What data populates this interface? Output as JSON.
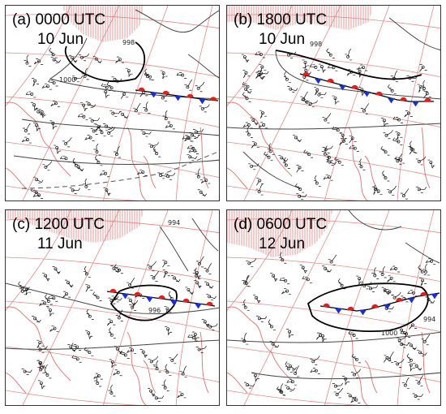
{
  "panels": [
    {
      "id": "a",
      "prefix": "(a)",
      "time": "0000 UTC",
      "date": "10 Jun",
      "isobar_labels": [
        "998",
        "1000"
      ]
    },
    {
      "id": "b",
      "prefix": "(b)",
      "time": "1800 UTC",
      "date": "10 Jun",
      "isobar_labels": [
        "998"
      ]
    },
    {
      "id": "c",
      "prefix": "(c)",
      "time": "1200 UTC",
      "date": "11 Jun",
      "isobar_labels": [
        "996",
        "994"
      ]
    },
    {
      "id": "d",
      "prefix": "(d)",
      "time": "0600 UTC",
      "date": "12 Jun",
      "isobar_labels": [
        "994",
        "1000"
      ]
    }
  ],
  "colors": {
    "grid": "#e08a8a",
    "coast": "#d97070",
    "plateau_hatch": "#d97070",
    "isobar": "#444444",
    "warm_front": "#e02020",
    "cold_front": "#1a2fd0",
    "station": "#111111"
  }
}
